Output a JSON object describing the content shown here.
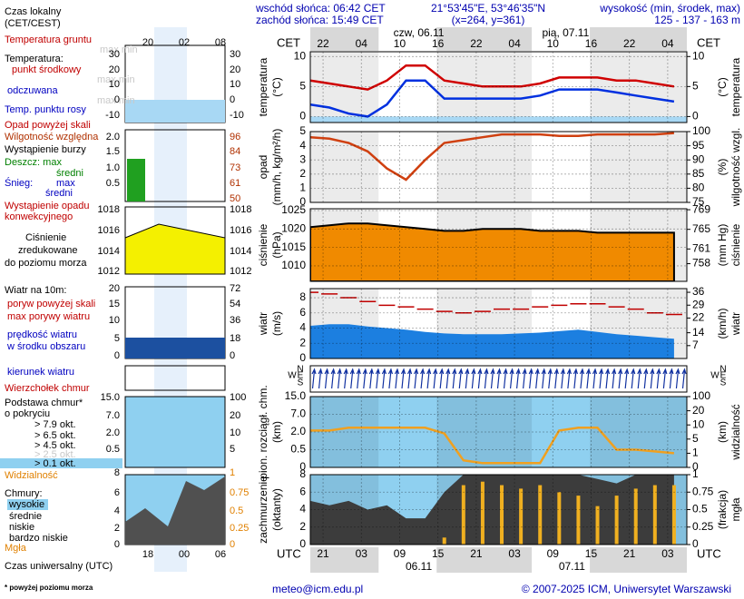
{
  "header": {
    "sunrise": "wschód słońca: 06:42 CET",
    "sunset": "zachód słońca: 15:49 CET",
    "coords": "21°53'45\"E, 53°46'35\"N",
    "grid_point": "(x=264, y=361)",
    "elevation_title": "wysokość (min, środek, max)",
    "elevation": "125 - 137 - 163 m"
  },
  "footer": {
    "note": "* powyżej poziomu morza",
    "email": "meteo@icm.edu.pl",
    "copyright": "© 2007-2025 ICM, Uniwersytet Warszawski"
  },
  "legend": {
    "local_time": "Czas lokalny",
    "local_time_zone": "(CET/CEST)",
    "ground_temp": "Temperatura gruntu",
    "maxmin1": "max min",
    "temperature": "Temperatura:",
    "midpoint": "punkt środkowy",
    "maxmin2": "max min",
    "feels_like": "odczuwana",
    "maxmin3": "max min",
    "dew_point": "Temp. punktu rosy",
    "precip_over": "Opad powyżej skali",
    "humidity": "Wilgotność względna",
    "storm": "Wystąpienie burzy",
    "rain": "Deszcz: max",
    "rain_mean": "średni",
    "snow": "Śnieg:",
    "snow_max": "max",
    "snow_mean": "średni",
    "convective1": "Wystąpienie opadu",
    "convective2": "konwekcyjnego",
    "pressure1": "Ciśnienie",
    "pressure2": "zredukowane",
    "pressure3": "do poziomu morza",
    "wind": "Wiatr na 10m:",
    "gust_over": "poryw powyżej skali",
    "gust_max": "max porywy wiatru",
    "wind_speed1": "prędkość wiatru",
    "wind_speed2": "w środku obszaru",
    "wind_dir": "kierunek wiatru",
    "cloud_top": "Wierzchołek chmur",
    "cloud_base1": "Podstawa chmur*",
    "cloud_base2": "o pokryciu",
    "okt79": "> 7.9 okt.",
    "okt65": "> 6.5 okt.",
    "okt45": "> 4.5 okt.",
    "okt25": "> 2.5 okt.",
    "okt01": "> 0.1 okt.",
    "visibility": "Widzialność",
    "clouds": "Chmury:",
    "high": "wysokie",
    "medium": "średnie",
    "low": "niskie",
    "very_low": "bardzo niskie",
    "fog": "Mgła",
    "utc_time": "Czas uniwersalny (UTC)",
    "axes": {
      "top_times": [
        "20",
        "02",
        "08"
      ],
      "bottom_times": [
        "18",
        "00",
        "06"
      ],
      "temp_left": [
        "30",
        "20",
        "10",
        "0",
        "-10"
      ],
      "temp_right": [
        "30",
        "20",
        "10",
        "0",
        "-10"
      ],
      "hum_left": [
        "2.0",
        "1.5",
        "1.0",
        "0.5"
      ],
      "hum_right": [
        "96",
        "84",
        "73",
        "61",
        "50"
      ],
      "pres_left": [
        "1018",
        "1016",
        "1014",
        "1012"
      ],
      "pres_right": [
        "1018",
        "1016",
        "1014",
        "1012"
      ],
      "wind_left": [
        "20",
        "15",
        "10",
        "5",
        "0"
      ],
      "wind_right": [
        "72",
        "54",
        "36",
        "18",
        "0"
      ],
      "cloud_left": [
        "15.0",
        "7.0",
        "2.0",
        "0.5"
      ],
      "cloud_right": [
        "100",
        "20",
        "10",
        "5"
      ],
      "cover_left": [
        "8",
        "6",
        "4",
        "2",
        "0"
      ],
      "cover_right": [
        "1",
        "0.75",
        "0.5",
        "0.25",
        "0"
      ]
    }
  },
  "time_axis": {
    "xlim": [
      0,
      59
    ],
    "cet": "CET",
    "utc": "UTC",
    "cet_ticks": [
      {
        "value": 2,
        "label": "22"
      },
      {
        "value": 8,
        "label": "04"
      },
      {
        "value": 14,
        "label": "10"
      },
      {
        "value": 20,
        "label": "16"
      },
      {
        "value": 26,
        "label": "22"
      },
      {
        "value": 32,
        "label": "04"
      },
      {
        "value": 38,
        "label": "10"
      },
      {
        "value": 44,
        "label": "16"
      },
      {
        "value": 50,
        "label": "22"
      },
      {
        "value": 56,
        "label": "04"
      }
    ],
    "utc_ticks": [
      {
        "value": 2,
        "label": "21"
      },
      {
        "value": 8,
        "label": "03"
      },
      {
        "value": 14,
        "label": "09"
      },
      {
        "value": 20,
        "label": "15"
      },
      {
        "value": 26,
        "label": "21"
      },
      {
        "value": 32,
        "label": "03"
      },
      {
        "value": 38,
        "label": "09"
      },
      {
        "value": 44,
        "label": "15"
      },
      {
        "value": 50,
        "label": "21"
      },
      {
        "value": 56,
        "label": "03"
      }
    ],
    "cet_days": [
      {
        "value": 17,
        "label": "czw, 06.11"
      },
      {
        "value": 40,
        "label": "pią, 07.11"
      }
    ],
    "utc_days": [
      {
        "value": 17,
        "label": "06.11"
      },
      {
        "value": 41,
        "label": "07.11"
      }
    ],
    "compass": [
      "N",
      "W",
      "E",
      "S"
    ]
  },
  "chart_data": [
    {
      "type": "line",
      "ylabel": [
        "temperatura",
        "(°C)"
      ],
      "y2label": [
        "(°C)",
        "temperatura"
      ],
      "grid": true,
      "x": [
        0,
        3,
        6,
        9,
        12,
        15,
        18,
        21,
        24,
        27,
        30,
        33,
        36,
        39,
        42,
        45,
        48,
        51,
        54,
        57
      ],
      "ylim": [
        -1,
        10.8
      ],
      "yticks": [
        0,
        5,
        10
      ],
      "y2lim": [
        -1,
        10.8
      ],
      "y2ticks": [
        0,
        5,
        10
      ],
      "series": [
        {
          "color": "#d00000",
          "style": "line",
          "values": [
            6,
            5.5,
            5,
            4.5,
            6,
            8.5,
            8.5,
            6,
            5.5,
            5,
            5,
            5,
            5.5,
            6.5,
            6.5,
            6.5,
            6,
            6,
            5.5,
            5
          ]
        },
        {
          "color": "#0030e0",
          "style": "line",
          "values": [
            2,
            1.5,
            0.5,
            0,
            2,
            6,
            6,
            3,
            3,
            3,
            3,
            3,
            3.5,
            4.5,
            4.5,
            4.5,
            4,
            3.5,
            3,
            2.5
          ]
        }
      ]
    },
    {
      "type": "line",
      "ylabel": [
        "opad",
        "(mm/h, kg/m²/h)"
      ],
      "y2label": [
        "(%)",
        "wilgotność wzgl."
      ],
      "grid": true,
      "x": [
        0,
        3,
        6,
        9,
        12,
        15,
        18,
        21,
        24,
        27,
        30,
        33,
        36,
        39,
        42,
        45,
        48,
        51,
        54,
        57
      ],
      "ylim": [
        0,
        5
      ],
      "yticks": [
        0,
        1,
        2,
        3,
        4,
        5
      ],
      "y2lim": [
        75,
        100
      ],
      "y2ticks": [
        75,
        80,
        85,
        90,
        95,
        100
      ],
      "series": [
        {
          "color": "#d04010",
          "style": "line",
          "axis": "y2",
          "values": [
            98,
            97.5,
            96,
            93,
            87,
            83,
            90,
            96,
            97,
            98,
            99,
            99,
            99,
            98.5,
            98.5,
            99,
            99,
            99,
            99,
            99.5
          ]
        }
      ]
    },
    {
      "type": "area",
      "ylabel": [
        "ciśnienie",
        "(hPa)"
      ],
      "y2label": [
        "(mm Hg)",
        "ciśnienie"
      ],
      "grid": true,
      "x": [
        0,
        3,
        6,
        9,
        12,
        15,
        18,
        21,
        24,
        27,
        30,
        33,
        36,
        39,
        42,
        45,
        48,
        51,
        54,
        57
      ],
      "ylim": [
        1005.8,
        1025.5
      ],
      "yticks": [
        1010,
        1015,
        1020,
        1025
      ],
      "y2lim": [
        754.4,
        769.2
      ],
      "y2ticks": [
        758,
        761,
        765,
        769
      ],
      "series": [
        {
          "color": "#f08a00",
          "style": "area",
          "values": [
            1020.5,
            1021,
            1021.5,
            1021.5,
            1021,
            1020.5,
            1020,
            1019.5,
            1019.5,
            1020,
            1020,
            1020,
            1019.5,
            1019.5,
            1019.5,
            1019,
            1019,
            1019,
            1019,
            1019
          ]
        }
      ]
    },
    {
      "type": "area",
      "ylabel": [
        "wiatr",
        "(m/s)"
      ],
      "y2label": [
        "(km/h)",
        "wiatr"
      ],
      "grid": true,
      "x": [
        0,
        3,
        6,
        9,
        12,
        15,
        18,
        21,
        24,
        27,
        30,
        33,
        36,
        39,
        42,
        45,
        48,
        51,
        54,
        57
      ],
      "ylim": [
        0,
        9.2
      ],
      "yticks": [
        0,
        2,
        4,
        6,
        8
      ],
      "y2lim": [
        0,
        38
      ],
      "y2ticks": [
        7,
        14,
        22,
        29,
        36
      ],
      "series": [
        {
          "color": "#1c7fe0",
          "style": "area",
          "values": [
            4.3,
            4.5,
            4.5,
            4.2,
            4,
            3.8,
            3.5,
            3.3,
            3.2,
            3.2,
            3.2,
            3.3,
            3.4,
            3.6,
            3.8,
            3.5,
            3.2,
            3,
            2.8,
            2.6
          ]
        },
        {
          "color": "#c00000",
          "style": "dashes",
          "values": [
            8.7,
            8.5,
            8,
            7.5,
            7,
            6.8,
            6.5,
            6.2,
            6,
            6.2,
            6.5,
            6.5,
            6.8,
            7,
            7.2,
            7.2,
            6.8,
            6.5,
            6,
            5.8
          ]
        }
      ]
    },
    {
      "type": "line",
      "ylabel": [
        "pion. rozciągł. chm.",
        "(km)"
      ],
      "y2label": [
        "(km)",
        "widzialność"
      ],
      "grid": true,
      "yscale": "tick-spaced",
      "x": [
        0,
        3,
        6,
        9,
        12,
        15,
        18,
        21,
        24,
        27,
        30,
        33,
        36,
        39,
        42,
        45,
        48,
        51,
        54,
        57
      ],
      "ylim": [
        0,
        15
      ],
      "yticks": [
        0,
        0.5,
        {
          "value": 2,
          "label": "2.0"
        },
        {
          "value": 7,
          "label": "7.0"
        },
        {
          "value": 15,
          "label": "15.0"
        }
      ],
      "y2lim": [
        0,
        100
      ],
      "y2ticks": [
        0,
        1,
        5,
        10,
        20,
        100
      ],
      "series": [
        {
          "color": "#f0a020",
          "style": "line",
          "axis": "y2",
          "values": [
            8,
            8,
            9,
            9,
            9,
            9,
            9,
            7,
            0.5,
            0.3,
            0.3,
            0.3,
            0.3,
            8,
            9,
            9,
            2,
            2,
            1.5,
            1
          ]
        }
      ]
    },
    {
      "type": "area",
      "ylabel": [
        "zachmurzenie",
        "(oktanty)"
      ],
      "y2label": [
        "(frakcja)",
        "mgła"
      ],
      "grid": true,
      "x": [
        0,
        3,
        6,
        9,
        12,
        15,
        18,
        21,
        24,
        27,
        30,
        33,
        36,
        39,
        42,
        45,
        48,
        51,
        54,
        57
      ],
      "ylim": [
        0,
        8
      ],
      "yticks": [
        0,
        2,
        4,
        6,
        8
      ],
      "y2lim": [
        0,
        1
      ],
      "y2ticks": [
        0,
        0.25,
        0.5,
        0.75,
        1
      ],
      "series": [
        {
          "color": "#3c3c3c",
          "style": "area",
          "values": [
            5,
            4.5,
            5,
            4,
            4.5,
            3,
            3,
            6,
            8,
            8,
            8,
            8,
            8,
            8,
            8,
            7.5,
            7,
            8,
            8,
            8
          ]
        },
        {
          "color": "#f0b020",
          "style": "bars",
          "axis": "y2",
          "values": [
            0,
            0,
            0,
            0,
            0,
            0,
            0,
            0.1,
            0.85,
            0.9,
            0.85,
            0.8,
            0.85,
            0.75,
            0.7,
            0.55,
            0.7,
            0.8,
            0.85,
            0.85
          ]
        }
      ]
    }
  ]
}
